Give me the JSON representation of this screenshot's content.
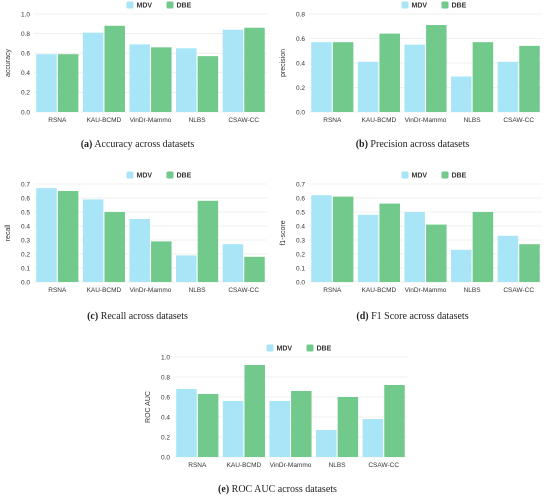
{
  "colors": {
    "mdv": "#a8e6f7",
    "dbe": "#72c98c",
    "grid": "#e4e4e4"
  },
  "legend": {
    "mdv": "MDV",
    "dbe": "DBE"
  },
  "chart_data": [
    {
      "type": "bar",
      "categories": [
        "RSNA",
        "KAU-BCMD",
        "VinDr-Mammo",
        "NLBS",
        "CSAW-CC"
      ],
      "series": [
        {
          "name": "MDV",
          "values": [
            0.59,
            0.81,
            0.69,
            0.65,
            0.84
          ]
        },
        {
          "name": "DBE",
          "values": [
            0.59,
            0.88,
            0.66,
            0.57,
            0.86
          ]
        }
      ],
      "ylabel": "accuracy",
      "ylim": [
        0,
        1.0
      ],
      "yticks": [
        "0.0",
        "0.2",
        "0.4",
        "0.6",
        "0.8",
        "1.0"
      ],
      "grid": true,
      "legend_position": "top-center",
      "caption_label": "(a)",
      "caption_text": "Accuracy across datasets"
    },
    {
      "type": "bar",
      "categories": [
        "RSNA",
        "KAU-BCMD",
        "VinDr-Mammo",
        "NLBS",
        "CSAW-CC"
      ],
      "series": [
        {
          "name": "MDV",
          "values": [
            0.57,
            0.41,
            0.55,
            0.29,
            0.41
          ]
        },
        {
          "name": "DBE",
          "values": [
            0.57,
            0.64,
            0.71,
            0.57,
            0.54
          ]
        }
      ],
      "ylabel": "precision",
      "ylim": [
        0,
        0.8
      ],
      "yticks": [
        "0.0",
        "0.2",
        "0.4",
        "0.6",
        "0.8"
      ],
      "grid": true,
      "legend_position": "top-center",
      "caption_label": "(b)",
      "caption_text": "Precision across datasets"
    },
    {
      "type": "bar",
      "categories": [
        "RSNA",
        "KAU-BCMD",
        "VinDr-Mammo",
        "NLBS",
        "CSAW-CC"
      ],
      "series": [
        {
          "name": "MDV",
          "values": [
            0.67,
            0.59,
            0.45,
            0.19,
            0.27
          ]
        },
        {
          "name": "DBE",
          "values": [
            0.65,
            0.5,
            0.29,
            0.58,
            0.18
          ]
        }
      ],
      "ylabel": "recall",
      "ylim": [
        0,
        0.7
      ],
      "yticks": [
        "0.0",
        "0.1",
        "0.2",
        "0.3",
        "0.4",
        "0.5",
        "0.6",
        "0.7"
      ],
      "grid": true,
      "legend_position": "top-center",
      "caption_label": "(c)",
      "caption_text": "Recall across datasets"
    },
    {
      "type": "bar",
      "categories": [
        "RSNA",
        "KAU-BCMD",
        "VinDr-Mammo",
        "NLBS",
        "CSAW-CC"
      ],
      "series": [
        {
          "name": "MDV",
          "values": [
            0.62,
            0.48,
            0.5,
            0.23,
            0.33
          ]
        },
        {
          "name": "DBE",
          "values": [
            0.61,
            0.56,
            0.41,
            0.5,
            0.27
          ]
        }
      ],
      "ylabel": "f1-score",
      "ylim": [
        0,
        0.7
      ],
      "yticks": [
        "0.0",
        "0.1",
        "0.2",
        "0.3",
        "0.4",
        "0.5",
        "0.6",
        "0.7"
      ],
      "grid": true,
      "legend_position": "top-center",
      "caption_label": "(d)",
      "caption_text": "F1 Score across datasets"
    },
    {
      "type": "bar",
      "categories": [
        "RSNA",
        "KAU-BCMD",
        "VinDr-Mammo",
        "NLBS",
        "CSAW-CC"
      ],
      "series": [
        {
          "name": "MDV",
          "values": [
            0.68,
            0.56,
            0.56,
            0.27,
            0.38
          ]
        },
        {
          "name": "DBE",
          "values": [
            0.63,
            0.92,
            0.66,
            0.6,
            0.72
          ]
        }
      ],
      "ylabel": "ROC AUC",
      "ylim": [
        0,
        1.0
      ],
      "yticks": [
        "0.0",
        "0.2",
        "0.4",
        "0.6",
        "0.8",
        "1.0"
      ],
      "grid": true,
      "legend_position": "top-center",
      "caption_label": "(e)",
      "caption_text": "ROC AUC across datasets"
    }
  ]
}
